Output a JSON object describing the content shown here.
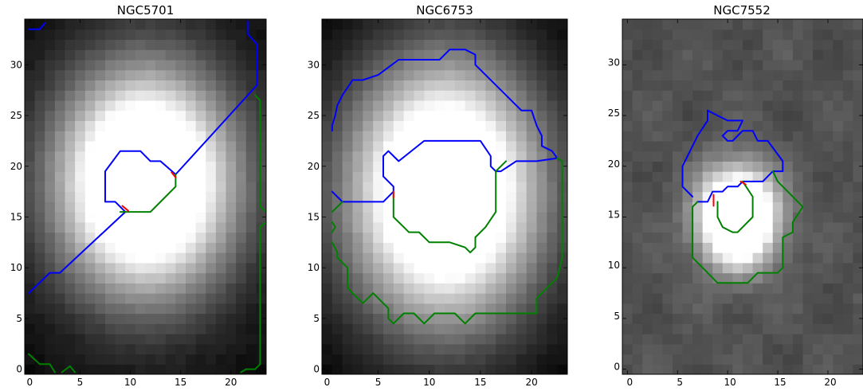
{
  "figure": {
    "panels": [
      {
        "title": "NGC5701"
      },
      {
        "title": "NGC6753"
      },
      {
        "title": "NGC7552"
      }
    ]
  },
  "chart_data": [
    {
      "type": "heatmap",
      "title": "NGC5701",
      "xlim": [
        -0.5,
        23.5
      ],
      "ylim": [
        -0.5,
        34.5
      ],
      "xticks": [
        0,
        5,
        10,
        15,
        20
      ],
      "yticks": [
        0,
        5,
        10,
        15,
        20,
        25,
        30
      ],
      "image": {
        "kind": "blob",
        "cx": 11.5,
        "cy": 18.5,
        "sx": 5.6,
        "sy": 7.0,
        "peak": 1.8,
        "floor": 0.02,
        "gamma": 0.8
      },
      "contours": [
        {
          "color": "#0000ff",
          "points": [
            [
              -0.1,
              7.5
            ],
            [
              2,
              9.5
            ],
            [
              3,
              9.5
            ],
            [
              9.5,
              15.5
            ],
            [
              8.5,
              16.5
            ],
            [
              7.5,
              16.5
            ],
            [
              7.5,
              19.5
            ],
            [
              9,
              21.5
            ],
            [
              11,
              21.5
            ],
            [
              12,
              20.5
            ],
            [
              13,
              20.5
            ],
            [
              14.5,
              19.2
            ],
            [
              22.6,
              28
            ],
            [
              22.6,
              32
            ],
            [
              21.7,
              33
            ],
            [
              21.7,
              34.3
            ]
          ]
        },
        {
          "color": "#0000ff",
          "points": [
            [
              -0.1,
              33.5
            ],
            [
              1,
              33.5
            ],
            [
              1.5,
              34.1
            ]
          ]
        },
        {
          "color": "#008000",
          "points": [
            [
              9,
              15.5
            ],
            [
              12,
              15.5
            ],
            [
              14.5,
              18
            ],
            [
              14.5,
              19.2
            ]
          ]
        },
        {
          "color": "#008000",
          "points": [
            [
              22.4,
              27
            ],
            [
              22.9,
              26.5
            ],
            [
              22.9,
              16
            ],
            [
              23.5,
              15.5
            ]
          ]
        },
        {
          "color": "#008000",
          "points": [
            [
              23.5,
              14.5
            ],
            [
              22.9,
              14
            ],
            [
              22.9,
              0.5
            ],
            [
              22.4,
              0
            ],
            [
              21.5,
              0
            ],
            [
              21,
              -0.3
            ]
          ]
        },
        {
          "color": "#008000",
          "points": [
            [
              -0.1,
              1.5
            ],
            [
              1,
              0.5
            ],
            [
              2,
              0.5
            ],
            [
              2.5,
              -0.3
            ]
          ]
        },
        {
          "color": "#008000",
          "points": [
            [
              3.2,
              -0.3
            ],
            [
              4,
              0.3
            ],
            [
              4.5,
              -0.3
            ]
          ]
        },
        {
          "color": "#ff0000",
          "points": [
            [
              9.2,
              16.1
            ],
            [
              9.8,
              15.6
            ]
          ]
        },
        {
          "color": "#ff0000",
          "points": [
            [
              14.1,
              19.4
            ],
            [
              14.5,
              18.9
            ]
          ]
        }
      ]
    },
    {
      "type": "heatmap",
      "title": "NGC6753",
      "xlim": [
        -0.5,
        23.5
      ],
      "ylim": [
        -0.5,
        34.5
      ],
      "xticks": [
        0,
        5,
        10,
        15,
        20
      ],
      "yticks": [
        0,
        5,
        10,
        15,
        20,
        25,
        30
      ],
      "image": {
        "kind": "blob",
        "cx": 11.5,
        "cy": 17.5,
        "sx": 6.3,
        "sy": 8.5,
        "peak": 1.65,
        "floor": 0.0,
        "gamma": 0.9
      },
      "contours": [
        {
          "color": "#0000ff",
          "points": [
            [
              0.5,
              17.5
            ],
            [
              1.5,
              16.5
            ],
            [
              5.5,
              16.5
            ],
            [
              6.5,
              17.5
            ],
            [
              6.5,
              18
            ],
            [
              5.5,
              19
            ],
            [
              5.5,
              21
            ],
            [
              6,
              21.5
            ],
            [
              7,
              20.5
            ],
            [
              9.5,
              22.5
            ],
            [
              15,
              22.5
            ],
            [
              16,
              21
            ],
            [
              16,
              20
            ],
            [
              16.5,
              19.5
            ],
            [
              17,
              19.5
            ],
            [
              18.5,
              20.5
            ],
            [
              20.5,
              20.5
            ],
            [
              22.5,
              20.8
            ],
            [
              22,
              21.5
            ],
            [
              21,
              22
            ],
            [
              21,
              23
            ],
            [
              20.5,
              24
            ],
            [
              20,
              25.5
            ],
            [
              19,
              25.5
            ],
            [
              14.5,
              30
            ],
            [
              14.5,
              31
            ],
            [
              13.5,
              31.5
            ],
            [
              12,
              31.5
            ],
            [
              11,
              30.5
            ],
            [
              7,
              30.5
            ],
            [
              5,
              29
            ],
            [
              3.5,
              28.5
            ],
            [
              2.5,
              28.5
            ],
            [
              1.5,
              27
            ],
            [
              1,
              26
            ],
            [
              0.8,
              25
            ],
            [
              0.5,
              24
            ],
            [
              0.5,
              23.5
            ]
          ]
        },
        {
          "color": "#008000",
          "points": [
            [
              6.5,
              17.5
            ],
            [
              6.5,
              15
            ],
            [
              7.5,
              14
            ],
            [
              8,
              13.5
            ],
            [
              9,
              13.5
            ],
            [
              10,
              12.5
            ],
            [
              12,
              12.5
            ],
            [
              13.5,
              12
            ],
            [
              14,
              11.5
            ],
            [
              14.5,
              12
            ],
            [
              14.5,
              13
            ],
            [
              15.5,
              14
            ],
            [
              16.5,
              15.5
            ],
            [
              16.5,
              19.5
            ],
            [
              17.5,
              20.5
            ]
          ]
        },
        {
          "color": "#008000",
          "points": [
            [
              0.5,
              12.5
            ],
            [
              1,
              11.5
            ],
            [
              1,
              11
            ],
            [
              2,
              10
            ],
            [
              2,
              8
            ],
            [
              3,
              7
            ],
            [
              3.5,
              6.5
            ],
            [
              4.5,
              7.5
            ],
            [
              6,
              6
            ],
            [
              6,
              5
            ],
            [
              6.5,
              4.5
            ],
            [
              7.5,
              5.5
            ],
            [
              8.5,
              5.5
            ],
            [
              9.5,
              4.5
            ],
            [
              10.5,
              5.5
            ],
            [
              12.5,
              5.5
            ],
            [
              13.5,
              4.5
            ],
            [
              14.5,
              5.5
            ],
            [
              20.5,
              5.5
            ],
            [
              20.5,
              7
            ],
            [
              21.5,
              8
            ],
            [
              22.5,
              9
            ],
            [
              23,
              11
            ],
            [
              23,
              20.5
            ],
            [
              22.5,
              20.8
            ]
          ]
        },
        {
          "color": "#008000",
          "points": [
            [
              0.5,
              15.5
            ],
            [
              1,
              16
            ],
            [
              1.5,
              16.5
            ]
          ]
        },
        {
          "color": "#008000",
          "points": [
            [
              0.5,
              14.5
            ],
            [
              0.8,
              14
            ],
            [
              0.5,
              13.5
            ]
          ]
        },
        {
          "color": "#ff0000",
          "points": [
            [
              6.5,
              17.5
            ],
            [
              6.5,
              16.9
            ]
          ]
        }
      ]
    },
    {
      "type": "heatmap",
      "title": "NGC7552",
      "xlim": [
        -0.5,
        23.5
      ],
      "ylim": [
        -0.5,
        34.5
      ],
      "xticks": [
        0,
        5,
        10,
        15,
        20
      ],
      "yticks": [
        0,
        5,
        10,
        15,
        20,
        25,
        30
      ],
      "image": {
        "kind": "mottled",
        "cx": 11,
        "cy": 15,
        "sx": 2.6,
        "sy": 3.2,
        "peak": 1.8,
        "floor": 0.32,
        "gamma": 1.0
      },
      "contours": [
        {
          "color": "#0000ff",
          "points": [
            [
              7,
              16.5
            ],
            [
              8,
              16.5
            ],
            [
              8.5,
              17.5
            ],
            [
              9.5,
              17.5
            ],
            [
              10,
              18
            ],
            [
              11,
              18
            ],
            [
              11.5,
              18.5
            ],
            [
              12,
              18.5
            ],
            [
              13.5,
              18.5
            ],
            [
              14.5,
              19.5
            ],
            [
              15.5,
              19.5
            ],
            [
              15.5,
              20.5
            ],
            [
              14,
              22.5
            ],
            [
              13,
              22.5
            ],
            [
              12.5,
              23.5
            ],
            [
              11.5,
              23.5
            ],
            [
              11,
              23
            ],
            [
              10.5,
              22.5
            ],
            [
              10,
              22.5
            ],
            [
              9.5,
              23
            ],
            [
              10,
              23.5
            ],
            [
              11,
              23.5
            ],
            [
              11.5,
              24.5
            ],
            [
              10,
              24.5
            ],
            [
              9,
              25
            ],
            [
              8,
              25.5
            ],
            [
              8,
              24.5
            ],
            [
              7,
              23
            ],
            [
              6.5,
              22
            ],
            [
              6,
              21
            ],
            [
              5.5,
              20
            ],
            [
              5.5,
              18
            ],
            [
              6.5,
              17
            ]
          ]
        },
        {
          "color": "#008000",
          "points": [
            [
              11.5,
              18.5
            ],
            [
              12.5,
              17
            ],
            [
              12.5,
              15
            ],
            [
              11.5,
              14
            ],
            [
              11,
              13.5
            ],
            [
              10.5,
              13.5
            ],
            [
              9.5,
              14
            ],
            [
              9,
              15
            ],
            [
              9,
              16.5
            ]
          ]
        },
        {
          "color": "#008000",
          "points": [
            [
              7,
              16.5
            ],
            [
              6.5,
              16
            ],
            [
              6.5,
              11
            ],
            [
              8,
              9.5
            ],
            [
              9,
              8.5
            ],
            [
              12,
              8.5
            ],
            [
              13,
              9.5
            ],
            [
              15,
              9.5
            ],
            [
              15.5,
              10
            ],
            [
              15.5,
              13
            ],
            [
              16.5,
              13.5
            ],
            [
              16.5,
              14.5
            ],
            [
              17.5,
              16
            ],
            [
              16,
              17.5
            ],
            [
              15,
              18.5
            ],
            [
              14.5,
              19.5
            ]
          ]
        },
        {
          "color": "#ff0000",
          "points": [
            [
              8.6,
              17.2
            ],
            [
              8.6,
              16.1
            ]
          ]
        },
        {
          "color": "#ff0000",
          "points": [
            [
              11.3,
              18.5
            ],
            [
              11.8,
              18.2
            ]
          ]
        }
      ]
    }
  ]
}
